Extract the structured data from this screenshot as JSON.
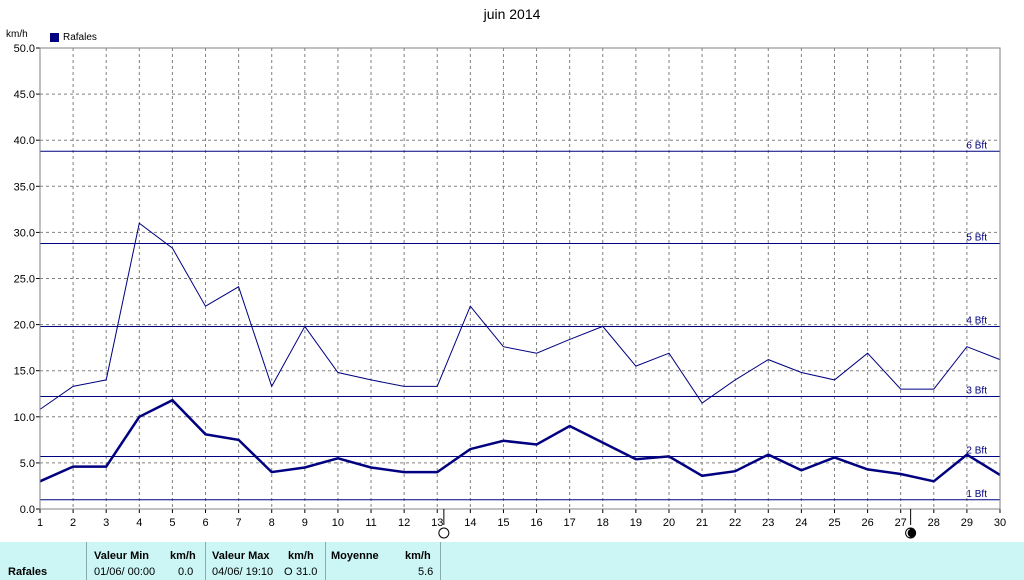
{
  "header": {
    "title": "juin 2014",
    "unit": "km/h"
  },
  "legend": {
    "label": "Rafales",
    "color": "#000080"
  },
  "chart_data": {
    "type": "line",
    "title": "juin 2014",
    "ylabel": "km/h",
    "xlim": [
      1,
      30
    ],
    "ylim": [
      0,
      50
    ],
    "x_ticks": [
      1,
      2,
      3,
      4,
      5,
      6,
      7,
      8,
      9,
      10,
      11,
      12,
      13,
      14,
      15,
      16,
      17,
      18,
      19,
      20,
      21,
      22,
      23,
      24,
      25,
      26,
      27,
      28,
      29,
      30
    ],
    "y_ticks": [
      "0.0",
      "5.0",
      "10.0",
      "15.0",
      "20.0",
      "25.0",
      "30.0",
      "35.0",
      "40.0",
      "45.0",
      "50.0"
    ],
    "grid": true,
    "series": [
      {
        "name": "",
        "style": "thin",
        "x": [
          1,
          2,
          3,
          4,
          5,
          6,
          7,
          8,
          9,
          10,
          11,
          12,
          13,
          14,
          15,
          16,
          17,
          18,
          19,
          20,
          21,
          22,
          23,
          24,
          25,
          26,
          27,
          28,
          29,
          30
        ],
        "values": [
          10.8,
          13.3,
          14.0,
          31.0,
          28.3,
          22.0,
          24.1,
          13.3,
          19.8,
          14.8,
          14.0,
          13.3,
          13.3,
          22.0,
          17.6,
          16.9,
          18.4,
          19.8,
          15.5,
          16.9,
          11.5,
          14.0,
          16.2,
          14.8,
          14.0,
          16.9,
          13.0,
          13.0,
          17.6,
          16.2
        ]
      },
      {
        "name": "",
        "style": "thick",
        "x": [
          1,
          2,
          3,
          4,
          5,
          6,
          7,
          8,
          9,
          10,
          11,
          12,
          13,
          14,
          15,
          16,
          17,
          18,
          19,
          20,
          21,
          22,
          23,
          24,
          25,
          26,
          27,
          28,
          29,
          30
        ],
        "values": [
          3.0,
          4.6,
          4.6,
          10.0,
          11.8,
          8.1,
          7.5,
          4.0,
          4.5,
          5.5,
          4.5,
          4.0,
          4.0,
          6.5,
          7.4,
          7.0,
          9.0,
          7.2,
          5.4,
          5.7,
          3.6,
          4.1,
          5.9,
          4.2,
          5.6,
          4.3,
          3.8,
          3.0,
          5.9,
          3.7
        ]
      }
    ],
    "reference_lines": [
      {
        "label": "1 Bft",
        "value": 1.0
      },
      {
        "label": "2 Bft",
        "value": 5.7
      },
      {
        "label": "3 Bft",
        "value": 12.2
      },
      {
        "label": "4 Bft",
        "value": 19.8
      },
      {
        "label": "5 Bft",
        "value": 28.8
      },
      {
        "label": "6 Bft",
        "value": 38.8
      }
    ],
    "moon_markers": [
      {
        "symbol": "full-moon-icon",
        "x": 13.2
      },
      {
        "symbol": "new-moon-icon",
        "x": 27.3
      }
    ],
    "line_color": "#000080",
    "grid_color": "#808080"
  },
  "stats": {
    "row_label": "Rafales",
    "min": {
      "header": "Valeur Min",
      "unit": "km/h",
      "datetime": "01/06/  00:00",
      "value": "0.0"
    },
    "max": {
      "header": "Valeur Max",
      "unit": "km/h",
      "datetime": "04/06/  19:10",
      "dir": "O",
      "value": "31.0"
    },
    "avg": {
      "header": "Moyenne",
      "unit": "km/h",
      "value": "5.6"
    }
  }
}
